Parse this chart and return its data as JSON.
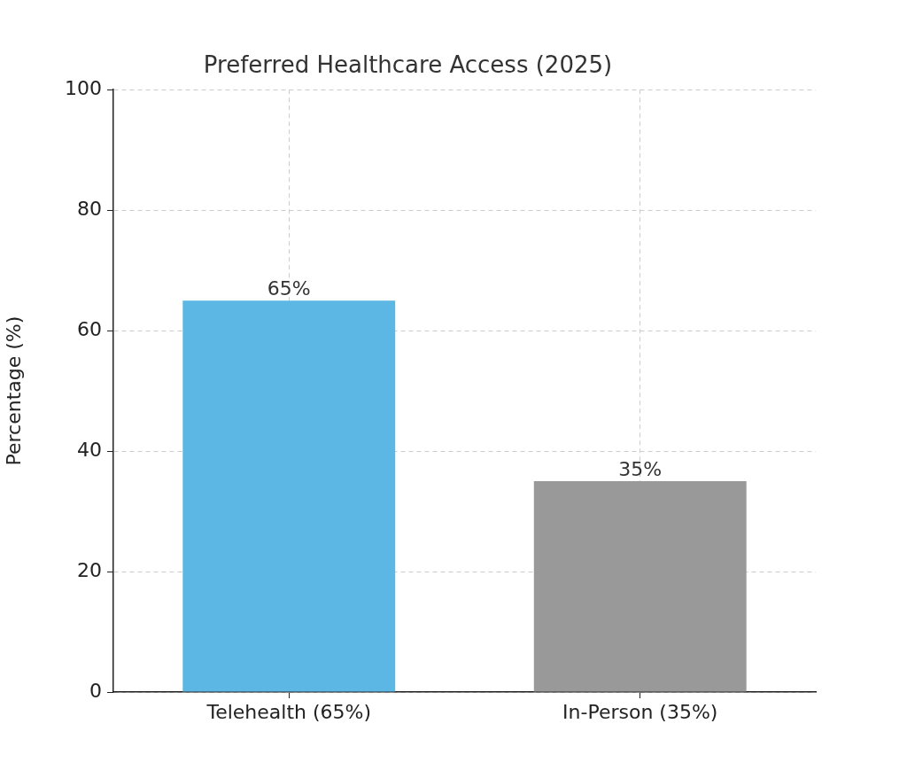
{
  "chart_data": {
    "type": "bar",
    "title": "Preferred Healthcare Access (2025)",
    "ylabel": "Percentage (%)",
    "categories": [
      "Telehealth (65%)",
      "In-Person (35%)"
    ],
    "values": [
      65,
      35
    ],
    "colors": [
      "#5db7e4",
      "#999999"
    ],
    "value_labels": [
      "65%",
      "35%"
    ],
    "ylim": [
      0,
      100
    ],
    "yticks": [
      0,
      20,
      40,
      60,
      80,
      100
    ],
    "grid": true,
    "legend": false
  }
}
